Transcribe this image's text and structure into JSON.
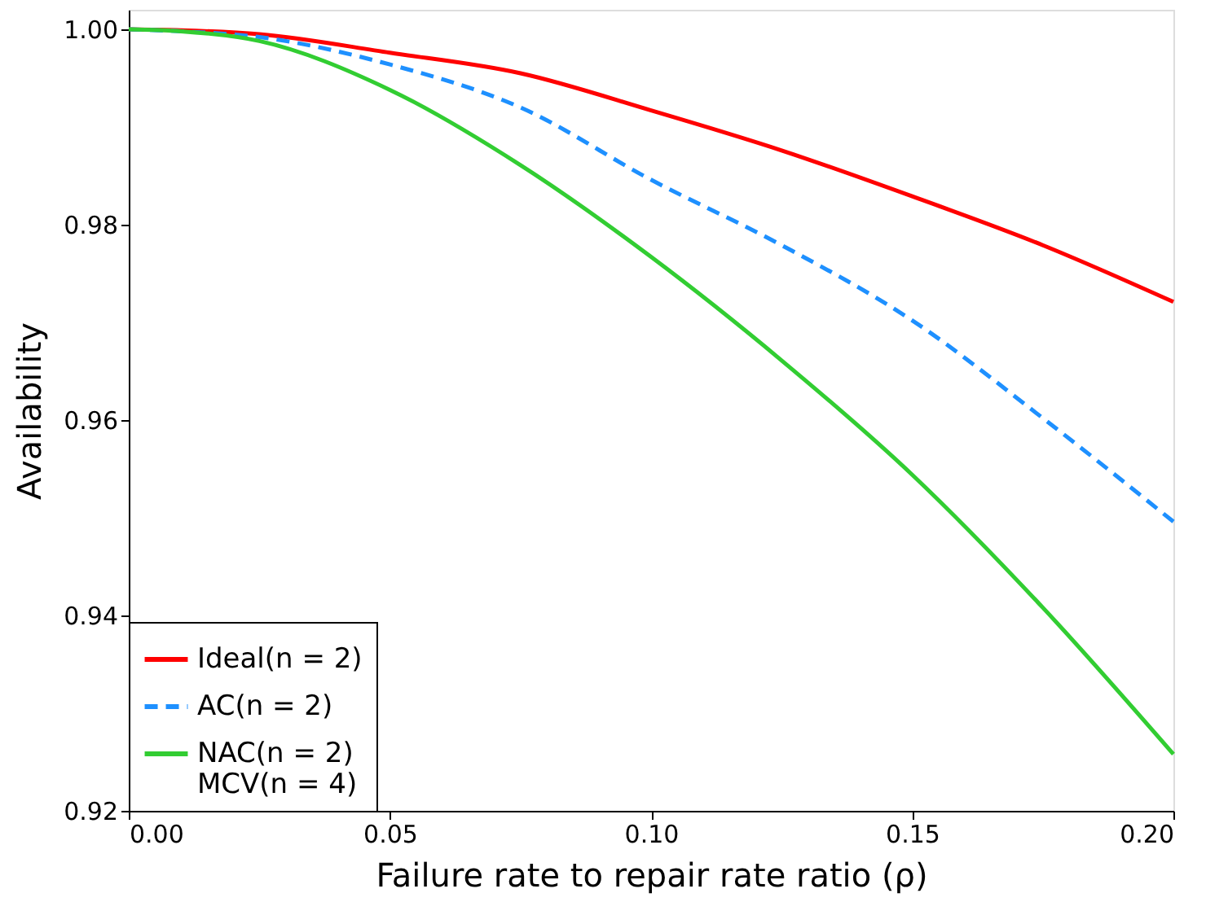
{
  "chart_data": {
    "type": "line",
    "xlabel": "Failure rate to repair rate ratio (ρ)",
    "ylabel": "Availability",
    "x": [
      0,
      0.01,
      0.025,
      0.05,
      0.075,
      0.1,
      0.125,
      0.15,
      0.175,
      0.2
    ],
    "series": [
      {
        "name": "Ideal(n = 2)",
        "color": "#ff0000",
        "line_style": "solid",
        "values": [
          1.0,
          0.9999,
          0.9995,
          0.9976,
          0.9955,
          0.9917,
          0.9876,
          0.9829,
          0.9779,
          0.9721
        ]
      },
      {
        "name": "AC(n = 2)",
        "color": "#1e90ff",
        "line_style": "dashed",
        "values": [
          1.0,
          0.9998,
          0.9992,
          0.9964,
          0.992,
          0.9846,
          0.9779,
          0.9702,
          0.9602,
          0.9496
        ]
      },
      {
        "name": "NAC(n = 2)\nMCV(n = 4)",
        "color": "#32cd32",
        "line_style": "solid",
        "values": [
          1.0,
          0.9998,
          0.9988,
          0.9938,
          0.9861,
          0.9767,
          0.9661,
          0.9544,
          0.9408,
          0.9258
        ]
      }
    ],
    "xlim": [
      0,
      0.2
    ],
    "xticks": [
      {
        "value": 0,
        "label": "0.00"
      },
      0.05,
      {
        "value": 0.1,
        "label": "0.10"
      },
      0.15,
      {
        "value": 0.2,
        "label": "0.20"
      }
    ],
    "ylim": [
      0.92,
      1.002
    ],
    "yticks": [
      0.92,
      0.94,
      0.96,
      0.98,
      {
        "value": 1.0,
        "label": "1.00"
      }
    ],
    "grid": false,
    "legend": "bottom left"
  }
}
